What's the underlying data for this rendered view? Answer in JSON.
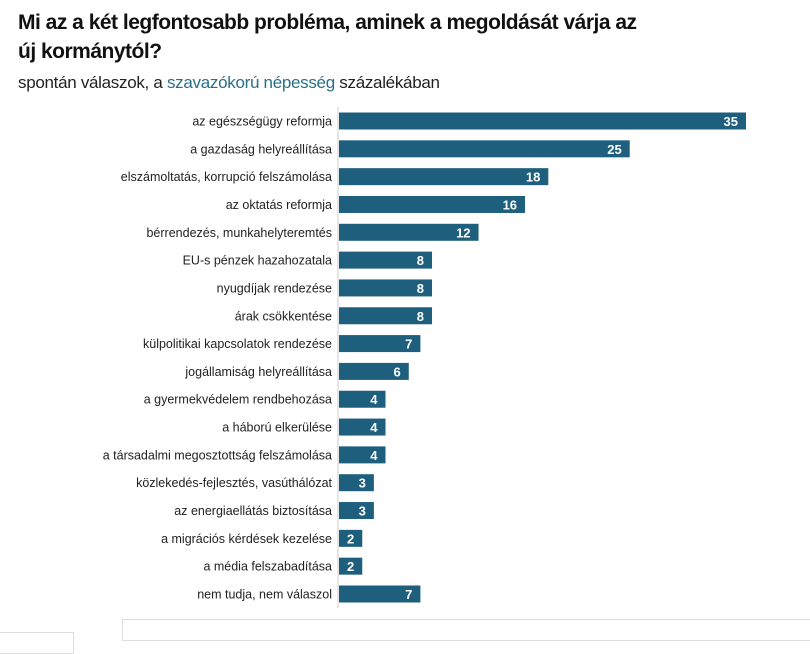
{
  "chart_data": {
    "type": "bar",
    "orientation": "horizontal",
    "title": "Mi az a két legfontosabb probléma, aminek a megoldását várja az új kormánytól?",
    "subtitle": {
      "before": "spontán válaszok, a ",
      "highlight": "szavazókorú népesség",
      "after": " százalékában"
    },
    "categories": [
      "az egészségügy reformja",
      "a gazdaság helyreállítása",
      "elszámoltatás, korrupció felszámolása",
      "az oktatás reformja",
      "bérrendezés, munkahelyteremtés",
      "EU-s pénzek hazahozatala",
      "nyugdíjak rendezése",
      "árak csökkentése",
      "külpolitikai kapcsolatok rendezése",
      "jogállamiság helyreállítása",
      "a gyermekvédelem rendbehozása",
      "a háború elkerülése",
      "a társadalmi megosztottság felszámolása",
      "közlekedés-fejlesztés, vasúthálózat",
      "az energiaellátás biztosítása",
      "a migrációs kérdések kezelése",
      "a média felszabadítása",
      "nem tudja, nem válaszol"
    ],
    "values": [
      35,
      25,
      18,
      16,
      12,
      8,
      8,
      8,
      7,
      6,
      4,
      4,
      4,
      3,
      3,
      2,
      2,
      7
    ],
    "xlim": [
      0,
      35
    ],
    "grid": false,
    "data_labels": true,
    "colors": {
      "bar": "#1f5f7e",
      "label": "#ffffff",
      "highlight": "#2a6f88",
      "axis": "#cccccc"
    }
  }
}
